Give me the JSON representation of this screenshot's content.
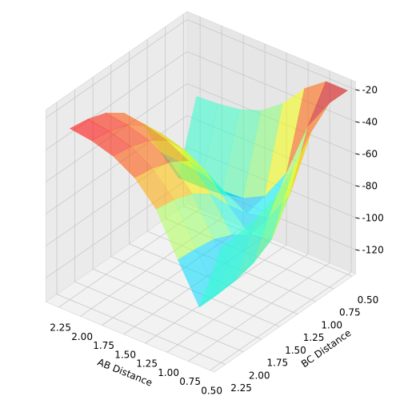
{
  "chart_data": {
    "type": "surface3d",
    "xlabel": "AB Distance",
    "ylabel": "BC Distance",
    "x": [
      0.5,
      0.75,
      1.0,
      1.25,
      1.5,
      1.75,
      2.0,
      2.25
    ],
    "y": [
      0.5,
      0.75,
      1.0,
      1.25,
      1.5,
      1.75,
      2.0,
      2.25
    ],
    "z": [
      [
        -20,
        -20,
        -30,
        -45,
        -55,
        -60,
        -62,
        -63
      ],
      [
        -20,
        -40,
        -75,
        -95,
        -102,
        -105,
        -106,
        -106
      ],
      [
        -30,
        -75,
        -95,
        -98,
        -90,
        -85,
        -83,
        -82
      ],
      [
        -45,
        -95,
        -98,
        -85,
        -70,
        -62,
        -58,
        -56
      ],
      [
        -55,
        -102,
        -90,
        -70,
        -55,
        -48,
        -44,
        -42
      ],
      [
        -60,
        -105,
        -85,
        -62,
        -48,
        -40,
        -36,
        -34
      ],
      [
        -62,
        -106,
        -83,
        -58,
        -44,
        -36,
        -32,
        -30
      ],
      [
        -63,
        -106,
        -82,
        -56,
        -42,
        -34,
        -30,
        -28
      ]
    ],
    "colormap": "jet",
    "alpha": 0.55,
    "xlim": [
      0.45,
      2.4
    ],
    "ylim": [
      0.45,
      2.4
    ],
    "zlim": [
      -135,
      -15
    ],
    "xticks": [
      {
        "value": 2.25,
        "label": "2.25"
      },
      {
        "value": 2.0,
        "label": "2.00"
      },
      {
        "value": 1.75,
        "label": "1.75"
      },
      {
        "value": 1.5,
        "label": "1.50"
      },
      {
        "value": 1.25,
        "label": "1.25"
      },
      {
        "value": 1.0,
        "label": "1.00"
      },
      {
        "value": 0.75,
        "label": "0.75"
      },
      {
        "value": 0.5,
        "label": "0.50"
      }
    ],
    "yticks": [
      {
        "value": 0.5,
        "label": "0.50"
      },
      {
        "value": 0.75,
        "label": "0.75"
      },
      {
        "value": 1.0,
        "label": "1.00"
      },
      {
        "value": 1.25,
        "label": "1.25"
      },
      {
        "value": 1.5,
        "label": "1.50"
      },
      {
        "value": 1.75,
        "label": "1.75"
      },
      {
        "value": 2.0,
        "label": "2.00"
      },
      {
        "value": 2.25,
        "label": "2.25"
      }
    ],
    "zticks": [
      -120,
      -100,
      -80,
      -60,
      -40,
      -20
    ],
    "grid": true
  }
}
